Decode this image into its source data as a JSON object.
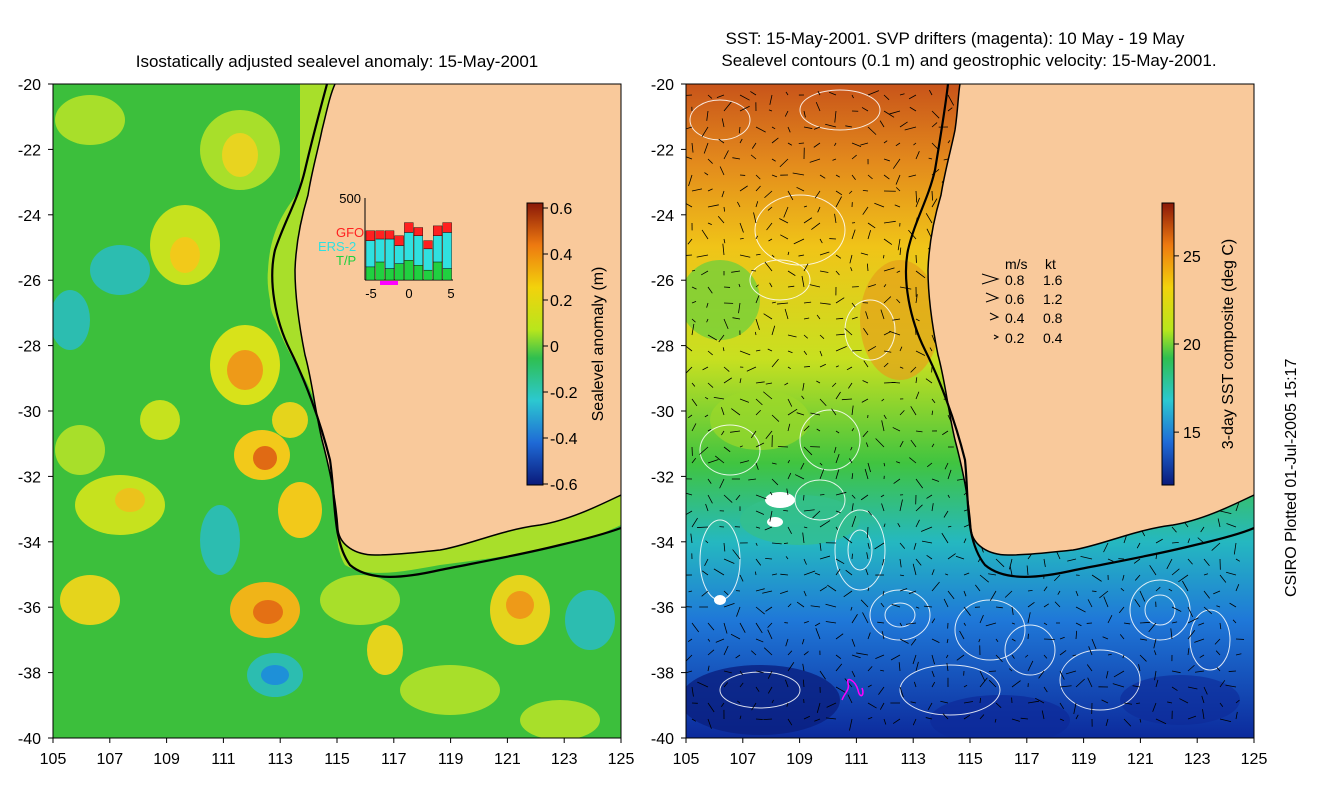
{
  "left_panel": {
    "title": "Isostatically adjusted sealevel anomaly: 15-May-2001",
    "lat_ticks": [
      "-20",
      "-22",
      "-24",
      "-26",
      "-28",
      "-30",
      "-32",
      "-34",
      "-36",
      "-38",
      "-40"
    ],
    "lon_ticks": [
      "105",
      "107",
      "109",
      "111",
      "113",
      "115",
      "117",
      "119",
      "121",
      "123",
      "125"
    ],
    "colorbar": {
      "label": "Sealevel anomaly (m)",
      "ticks": [
        "0.6",
        "0.4",
        "0.2",
        "0",
        "-0.2",
        "-0.4",
        "-0.6"
      ],
      "range": [
        -0.6,
        0.6
      ]
    },
    "inset": {
      "ymax_label": "500",
      "legend": [
        {
          "name": "GFO",
          "color": "#ff2020"
        },
        {
          "name": "ERS-2",
          "color": "#30e0e0"
        },
        {
          "name": "T/P",
          "color": "#20d040"
        }
      ],
      "x_ticks": [
        "-5",
        "0",
        "5"
      ],
      "bars": [
        {
          "tp": 80,
          "ers": 160,
          "gfo": 60
        },
        {
          "tp": 110,
          "ers": 140,
          "gfo": 50
        },
        {
          "tp": 70,
          "ers": 180,
          "gfo": 50
        },
        {
          "tp": 100,
          "ers": 110,
          "gfo": 60
        },
        {
          "tp": 120,
          "ers": 170,
          "gfo": 60
        },
        {
          "tp": 90,
          "ers": 180,
          "gfo": 50
        },
        {
          "tp": 60,
          "ers": 130,
          "gfo": 50
        },
        {
          "tp": 110,
          "ers": 160,
          "gfo": 60
        },
        {
          "tp": 70,
          "ers": 220,
          "gfo": 60
        }
      ]
    }
  },
  "right_panel": {
    "title_line1": "SST: 15-May-2001. SVP drifters (magenta): 10 May - 19 May",
    "title_line2": "Sealevel contours (0.1 m) and geostrophic velocity: 15-May-2001.",
    "lat_ticks": [
      "-20",
      "-22",
      "-24",
      "-26",
      "-28",
      "-30",
      "-32",
      "-34",
      "-36",
      "-38",
      "-40"
    ],
    "lon_ticks": [
      "105",
      "107",
      "109",
      "111",
      "113",
      "115",
      "117",
      "119",
      "121",
      "123",
      "125"
    ],
    "velocity_legend": {
      "header_ms": "m/s",
      "header_kt": "kt",
      "rows": [
        {
          "ms": "0.8",
          "kt": "1.6"
        },
        {
          "ms": "0.6",
          "kt": "1.2"
        },
        {
          "ms": "0.4",
          "kt": "0.8"
        },
        {
          "ms": "0.2",
          "kt": "0.4"
        }
      ]
    },
    "colorbar": {
      "label": "3-day SST composite (deg C)",
      "ticks": [
        "25",
        "20",
        "15"
      ],
      "range": [
        12,
        28
      ]
    }
  },
  "footer": {
    "plot_credit": "CSIRO Plotted 01-Jul-2005 15:17"
  },
  "colors": {
    "land": "#f9c99b",
    "coast": "#000000",
    "ocean_left": "#3cbf3c",
    "ocean_right_cold": "#1a3fb0",
    "ocean_right_warm": "#d07818"
  }
}
